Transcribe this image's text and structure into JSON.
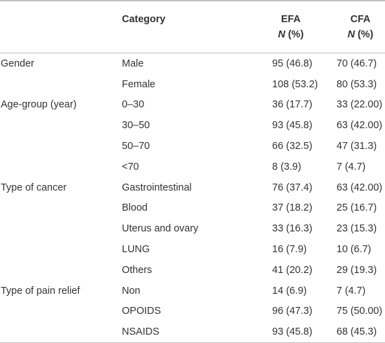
{
  "header": {
    "category": "Category",
    "efa": "EFA",
    "cfa": "CFA",
    "efa_unit_n": "N",
    "efa_unit_pct": "(%)",
    "cfa_unit_n": "N",
    "cfa_unit_pct": "(%)"
  },
  "rows": [
    {
      "group": "Gender",
      "category": "Male",
      "efa": "95 (46.8)",
      "cfa": "70 (46.7)"
    },
    {
      "group": "",
      "category": "Female",
      "efa": "108 (53.2)",
      "cfa": "80 (53.3)"
    },
    {
      "group": "Age-group (year)",
      "category": "0–30",
      "efa": "36 (17.7)",
      "cfa": "33 (22.00)"
    },
    {
      "group": "",
      "category": "30–50",
      "efa": "93 (45.8)",
      "cfa": "63 (42.00)"
    },
    {
      "group": "",
      "category": "50–70",
      "efa": "66 (32.5)",
      "cfa": "47 (31.3)"
    },
    {
      "group": "",
      "category": "<70",
      "efa": "8 (3.9)",
      "cfa": "7 (4.7)"
    },
    {
      "group": "Type of cancer",
      "category": "Gastrointestinal",
      "efa": "76 (37.4)",
      "cfa": "63 (42.00)"
    },
    {
      "group": "",
      "category": "Blood",
      "efa": "37 (18.2)",
      "cfa": "25 (16.7)"
    },
    {
      "group": "",
      "category": "Uterus and ovary",
      "efa": "33 (16.3)",
      "cfa": "23 (15.3)"
    },
    {
      "group": "",
      "category": "LUNG",
      "efa": "16 (7.9)",
      "cfa": "10 (6.7)"
    },
    {
      "group": "",
      "category": "Others",
      "efa": "41 (20.2)",
      "cfa": "29 (19.3)"
    },
    {
      "group": "Type of pain relief",
      "category": "Non",
      "efa": "14 (6.9)",
      "cfa": "7 (4.7)"
    },
    {
      "group": "",
      "category": "OPOIDS",
      "efa": "96 (47.3)",
      "cfa": "75 (50.00)"
    },
    {
      "group": "",
      "category": "NSAIDS",
      "efa": "93 (45.8)",
      "cfa": "68 (45.3)"
    }
  ]
}
